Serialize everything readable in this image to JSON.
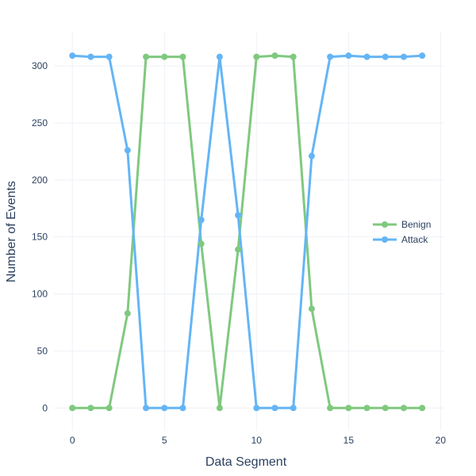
{
  "chart_data": {
    "type": "line",
    "x": [
      0,
      1,
      2,
      3,
      4,
      5,
      6,
      7,
      8,
      9,
      10,
      11,
      12,
      13,
      14,
      15,
      16,
      17,
      18,
      19
    ],
    "series": [
      {
        "name": "Benign",
        "color": "#7FC97F",
        "values": [
          0,
          0,
          0,
          83,
          308,
          308,
          308,
          144,
          0,
          139,
          308,
          309,
          308,
          87,
          0,
          0,
          0,
          0,
          0,
          0
        ]
      },
      {
        "name": "Attack",
        "color": "#64B5F6",
        "values": [
          309,
          308,
          308,
          226,
          0,
          0,
          0,
          165,
          308,
          169,
          0,
          0,
          0,
          221,
          308,
          309,
          308,
          308,
          308,
          309
        ]
      }
    ],
    "xlabel": "Data Segment",
    "ylabel": "Number of Events",
    "xlim": [
      -1,
      20.2
    ],
    "ylim": [
      -20,
      330
    ],
    "xticks": [
      0,
      5,
      10,
      15,
      20
    ],
    "yticks": [
      0,
      50,
      100,
      150,
      200,
      250,
      300
    ],
    "xtick_labels": [
      "0",
      "5",
      "10",
      "15",
      "20"
    ],
    "ytick_labels": [
      "0",
      "50",
      "100",
      "150",
      "200",
      "250",
      "300"
    ],
    "grid": true,
    "legend_position": "right"
  }
}
